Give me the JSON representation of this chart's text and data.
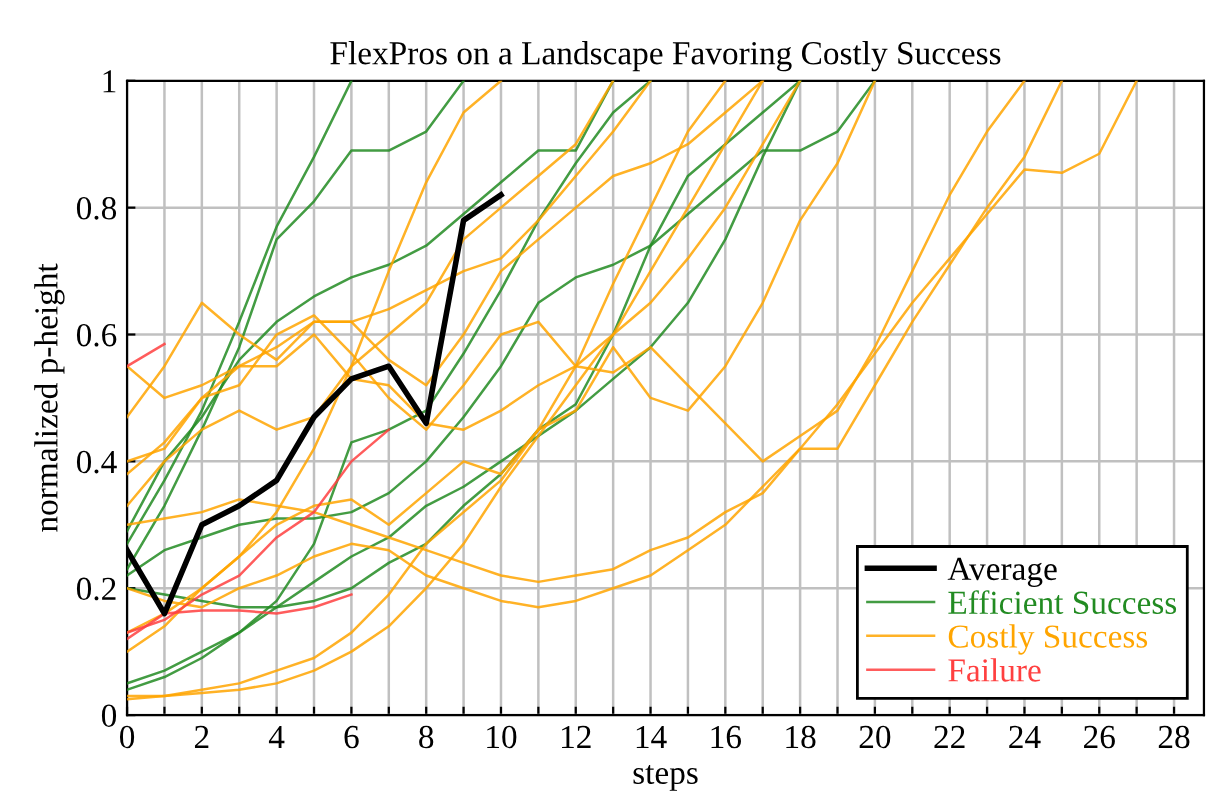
{
  "chart_data": {
    "type": "line",
    "title": "FlexPros on a Landscape Favoring Costly Success",
    "xlabel": "steps",
    "ylabel": "normalized p-height",
    "xlim": [
      0,
      28.8
    ],
    "ylim": [
      0,
      1
    ],
    "xticks": [
      0,
      {
        "value": 1,
        "label": null
      },
      2,
      {
        "value": 3,
        "label": null
      },
      4,
      {
        "value": 5,
        "label": null
      },
      6,
      {
        "value": 7,
        "label": null
      },
      8,
      {
        "value": 9,
        "label": null
      },
      10,
      {
        "value": 11,
        "label": null
      },
      12,
      {
        "value": 13,
        "label": null
      },
      14,
      {
        "value": 15,
        "label": null
      },
      16,
      {
        "value": 17,
        "label": null
      },
      18,
      {
        "value": 19,
        "label": null
      },
      20,
      {
        "value": 21,
        "label": null
      },
      22,
      {
        "value": 23,
        "label": null
      },
      24,
      {
        "value": 25,
        "label": null
      },
      26,
      {
        "value": 27,
        "label": null
      },
      28
    ],
    "yticks": [
      0,
      0.2,
      0.4,
      0.6,
      0.8,
      1
    ],
    "grid": true,
    "legend": "bottom right",
    "marker": "none",
    "line_style": "solid",
    "series": [
      {
        "color": "#228b22",
        "x": [
          0,
          1,
          2,
          3,
          4,
          5,
          6
        ],
        "values": [
          0.27,
          0.37,
          0.48,
          0.62,
          0.77,
          0.88,
          1.0
        ]
      },
      {
        "color": "#228b22",
        "x": [
          0,
          1,
          2,
          3,
          4,
          5,
          6,
          7,
          8,
          9
        ],
        "values": [
          0.23,
          0.33,
          0.45,
          0.58,
          0.75,
          0.81,
          0.89,
          0.89,
          0.92,
          1.0
        ]
      },
      {
        "color": "#228b22",
        "x": [
          0,
          1,
          2,
          3,
          4,
          5,
          6,
          7,
          8,
          9,
          10,
          11,
          12,
          13
        ],
        "values": [
          0.29,
          0.4,
          0.47,
          0.56,
          0.62,
          0.66,
          0.69,
          0.71,
          0.74,
          0.79,
          0.84,
          0.89,
          0.89,
          1.0
        ]
      },
      {
        "color": "#228b22",
        "x": [
          0,
          1,
          2,
          3,
          4,
          5,
          6,
          7,
          8,
          9,
          10,
          11,
          12,
          13,
          14,
          15,
          16,
          17,
          18
        ],
        "values": [
          0.2,
          0.19,
          0.18,
          0.17,
          0.17,
          0.18,
          0.2,
          0.24,
          0.27,
          0.33,
          0.38,
          0.45,
          0.49,
          0.6,
          0.74,
          0.85,
          0.9,
          0.95,
          1.0
        ]
      },
      {
        "color": "#228b22",
        "x": [
          0,
          1,
          2,
          3,
          4,
          5,
          6,
          7,
          8,
          9,
          10,
          11,
          12,
          13,
          14,
          15,
          16,
          17,
          18,
          19,
          20
        ],
        "values": [
          0.22,
          0.26,
          0.28,
          0.3,
          0.31,
          0.31,
          0.32,
          0.35,
          0.4,
          0.47,
          0.55,
          0.65,
          0.69,
          0.71,
          0.74,
          0.79,
          0.84,
          0.89,
          0.89,
          0.92,
          1.0
        ]
      },
      {
        "color": "#228b22",
        "x": [
          0,
          1,
          2,
          3,
          4,
          5,
          6,
          7,
          8,
          9,
          10,
          11,
          12,
          13,
          14
        ],
        "values": [
          0.04,
          0.06,
          0.09,
          0.13,
          0.18,
          0.27,
          0.43,
          0.45,
          0.48,
          0.57,
          0.67,
          0.78,
          0.87,
          0.95,
          1.0
        ]
      },
      {
        "name": "Efficient Success",
        "color": "#228b22",
        "x": [
          0,
          1,
          2,
          3,
          4,
          5,
          6,
          7,
          8,
          9,
          10,
          11,
          12,
          13,
          14,
          15,
          16,
          17,
          18
        ],
        "values": [
          0.05,
          0.07,
          0.1,
          0.13,
          0.17,
          0.21,
          0.25,
          0.28,
          0.33,
          0.36,
          0.4,
          0.44,
          0.48,
          0.53,
          0.58,
          0.65,
          0.75,
          0.88,
          1.0
        ]
      },
      {
        "color": "#ffa500",
        "x": [
          0,
          1,
          2,
          3,
          4,
          5,
          6,
          7,
          8,
          9,
          10,
          11,
          12,
          13,
          14,
          15,
          16,
          17
        ],
        "values": [
          0.47,
          0.55,
          0.65,
          0.6,
          0.56,
          0.62,
          0.62,
          0.56,
          0.52,
          0.6,
          0.7,
          0.75,
          0.8,
          0.85,
          0.87,
          0.9,
          0.95,
          1.0
        ]
      },
      {
        "color": "#ffa500",
        "x": [
          0,
          1,
          2,
          3,
          4,
          5,
          6,
          7,
          8,
          9,
          10,
          11,
          12,
          13,
          14
        ],
        "values": [
          0.38,
          0.43,
          0.5,
          0.55,
          0.58,
          0.62,
          0.62,
          0.64,
          0.67,
          0.7,
          0.72,
          0.78,
          0.85,
          0.92,
          1.0
        ]
      },
      {
        "color": "#ffa500",
        "x": [
          0,
          1,
          2,
          3,
          4,
          5,
          6,
          7,
          8,
          9,
          10,
          11,
          12,
          13,
          14,
          15,
          16,
          17,
          18
        ],
        "values": [
          0.55,
          0.5,
          0.52,
          0.55,
          0.55,
          0.6,
          0.53,
          0.52,
          0.46,
          0.45,
          0.48,
          0.52,
          0.55,
          0.6,
          0.65,
          0.72,
          0.8,
          0.9,
          1.0
        ]
      },
      {
        "color": "#ffa500",
        "x": [
          0,
          1,
          2,
          3,
          4,
          5,
          6,
          7,
          8,
          9,
          10,
          11,
          12,
          13
        ],
        "values": [
          0.33,
          0.4,
          0.45,
          0.48,
          0.45,
          0.47,
          0.55,
          0.6,
          0.65,
          0.75,
          0.8,
          0.85,
          0.9,
          1.0
        ]
      },
      {
        "color": "#ffa500",
        "x": [
          0,
          1,
          2,
          3,
          4,
          5,
          6,
          7,
          8,
          9,
          10
        ],
        "values": [
          0.1,
          0.14,
          0.2,
          0.25,
          0.32,
          0.42,
          0.55,
          0.7,
          0.84,
          0.95,
          1.0
        ]
      },
      {
        "color": "#ffa500",
        "x": [
          0,
          1,
          2,
          3,
          4,
          5,
          6,
          7,
          8,
          9,
          10,
          11,
          12,
          13,
          14,
          15,
          16
        ],
        "values": [
          0.03,
          0.03,
          0.04,
          0.05,
          0.07,
          0.09,
          0.13,
          0.19,
          0.27,
          0.32,
          0.37,
          0.45,
          0.55,
          0.68,
          0.8,
          0.92,
          1.0
        ]
      },
      {
        "color": "#ffa500",
        "x": [
          0,
          1,
          2,
          3,
          4,
          5,
          6,
          7,
          8,
          9,
          10,
          11,
          12,
          13,
          14,
          15,
          16,
          17
        ],
        "values": [
          0.025,
          0.03,
          0.035,
          0.04,
          0.05,
          0.07,
          0.1,
          0.14,
          0.2,
          0.27,
          0.36,
          0.44,
          0.52,
          0.6,
          0.7,
          0.8,
          0.9,
          1.0
        ]
      },
      {
        "color": "#ffa500",
        "x": [
          0,
          1,
          2,
          3,
          4,
          5,
          6,
          7,
          8,
          9,
          10,
          11,
          12,
          13,
          14,
          15,
          16,
          17,
          18,
          19,
          20,
          21,
          22,
          23,
          24,
          25,
          26,
          27
        ],
        "values": [
          0.2,
          0.18,
          0.17,
          0.2,
          0.22,
          0.25,
          0.27,
          0.26,
          0.22,
          0.2,
          0.18,
          0.17,
          0.18,
          0.2,
          0.22,
          0.26,
          0.3,
          0.36,
          0.42,
          0.49,
          0.57,
          0.65,
          0.72,
          0.79,
          0.86,
          0.855,
          0.885,
          1.0
        ]
      },
      {
        "color": "#ffa500",
        "x": [
          0,
          1,
          2,
          3,
          4,
          5,
          6,
          7,
          8,
          9,
          10,
          11,
          12,
          13,
          14,
          15,
          16,
          17,
          18,
          19,
          20,
          21,
          22,
          23,
          24,
          25
        ],
        "values": [
          0.3,
          0.31,
          0.32,
          0.34,
          0.33,
          0.32,
          0.3,
          0.28,
          0.26,
          0.24,
          0.22,
          0.21,
          0.22,
          0.23,
          0.26,
          0.28,
          0.32,
          0.35,
          0.42,
          0.42,
          0.52,
          0.62,
          0.71,
          0.8,
          0.88,
          1.0
        ]
      },
      {
        "color": "#ffa500",
        "x": [
          0,
          1,
          2,
          3,
          4,
          5,
          6,
          7,
          8,
          9,
          10,
          11,
          12,
          13,
          14,
          15,
          16,
          17,
          18,
          19,
          20
        ],
        "values": [
          0.13,
          0.16,
          0.2,
          0.25,
          0.3,
          0.33,
          0.34,
          0.3,
          0.35,
          0.4,
          0.38,
          0.45,
          0.48,
          0.58,
          0.5,
          0.48,
          0.55,
          0.65,
          0.78,
          0.87,
          1.0
        ]
      },
      {
        "name": "Costly Success",
        "color": "#ffa500",
        "x": [
          0,
          1,
          2,
          3,
          4,
          5,
          6,
          7,
          8,
          9,
          10,
          11,
          12,
          13,
          14,
          15,
          16,
          17,
          18,
          19,
          20,
          21,
          22,
          23,
          24
        ],
        "values": [
          0.4,
          0.42,
          0.5,
          0.52,
          0.6,
          0.63,
          0.57,
          0.5,
          0.45,
          0.52,
          0.6,
          0.62,
          0.55,
          0.54,
          0.58,
          0.52,
          0.46,
          0.4,
          0.44,
          0.48,
          0.58,
          0.7,
          0.82,
          0.92,
          1.0
        ]
      },
      {
        "color": "#ff4040",
        "x": [
          0,
          1
        ],
        "values": [
          0.55,
          0.585
        ]
      },
      {
        "color": "#ff4040",
        "x": [
          0,
          1,
          2,
          3,
          4,
          5,
          6
        ],
        "values": [
          0.12,
          0.16,
          0.165,
          0.165,
          0.16,
          0.17,
          0.19
        ]
      },
      {
        "name": "Failure",
        "color": "#ff4040",
        "x": [
          0,
          1,
          2,
          3,
          4,
          5,
          6,
          7
        ],
        "values": [
          0.13,
          0.15,
          0.19,
          0.22,
          0.28,
          0.32,
          0.4,
          0.45
        ]
      },
      {
        "name": "Average",
        "color": "#000000",
        "x": [
          0,
          1,
          2,
          3,
          4,
          5,
          6,
          7,
          8,
          9,
          10
        ],
        "values": [
          0.26,
          0.16,
          0.3,
          0.33,
          0.37,
          0.47,
          0.53,
          0.55,
          0.46,
          0.78,
          0.82
        ]
      }
    ]
  }
}
